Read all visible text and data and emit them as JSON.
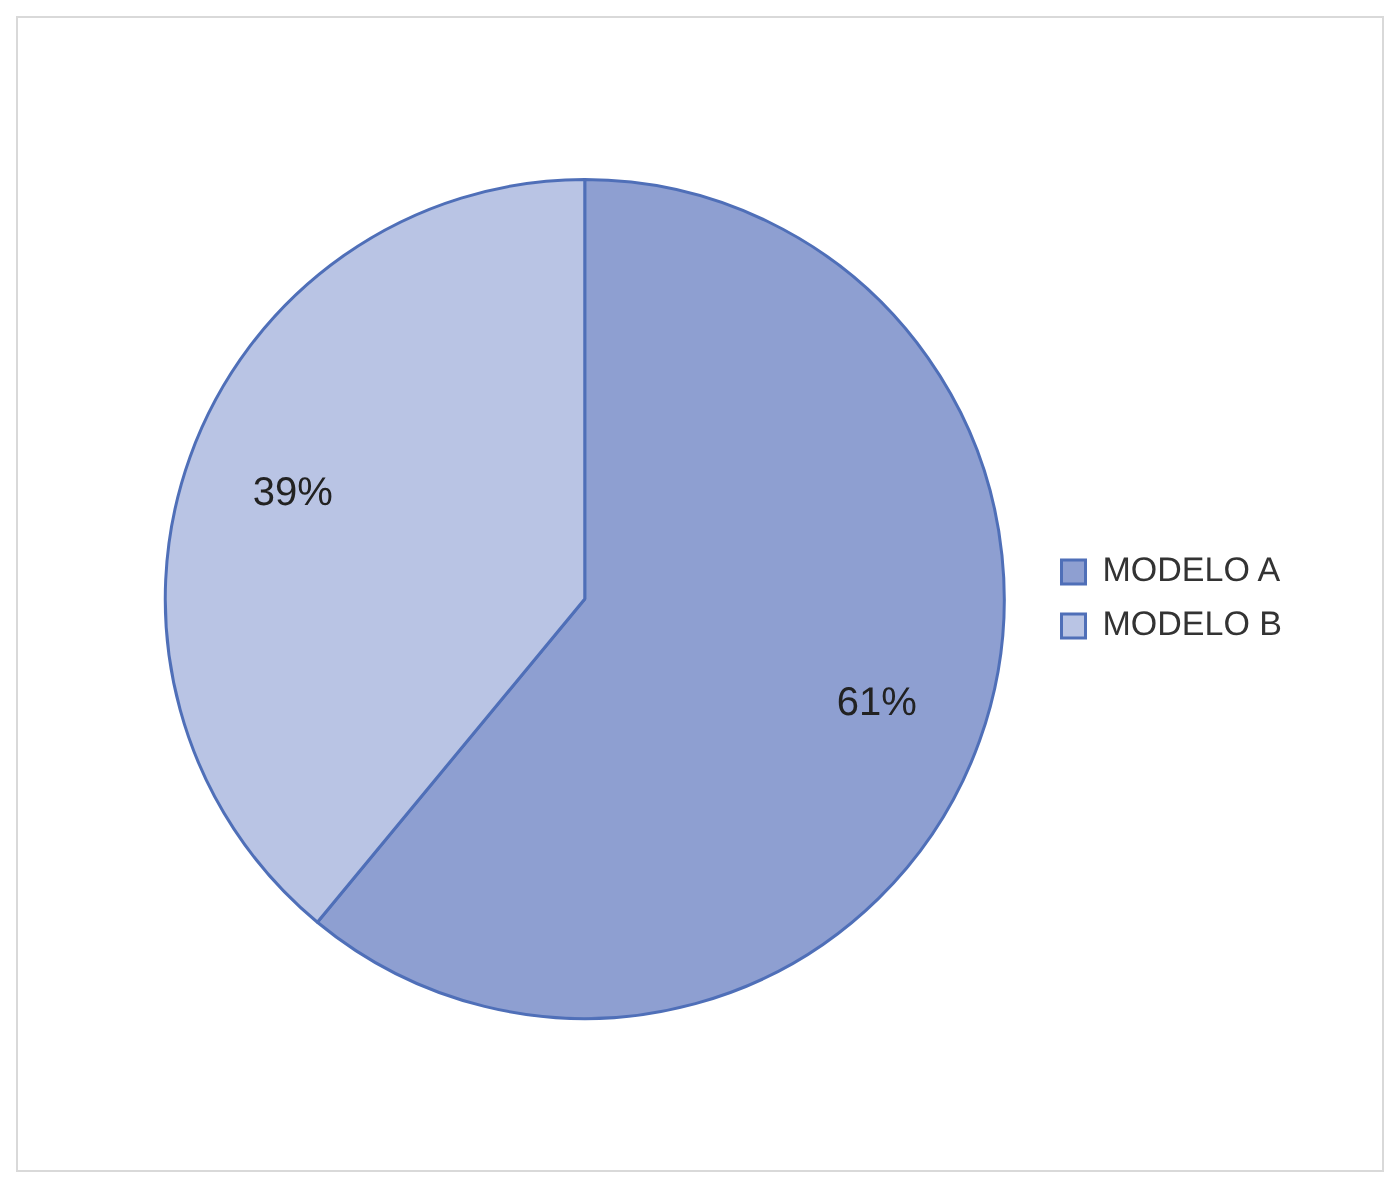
{
  "chart_data": {
    "type": "pie",
    "categories": [
      "MODELO A",
      "MODELO B"
    ],
    "values": [
      61,
      39
    ],
    "colors": [
      "#8e9fd1",
      "#b9c4e4"
    ],
    "value_labels": [
      "61%",
      "39%"
    ],
    "legend": "right"
  }
}
